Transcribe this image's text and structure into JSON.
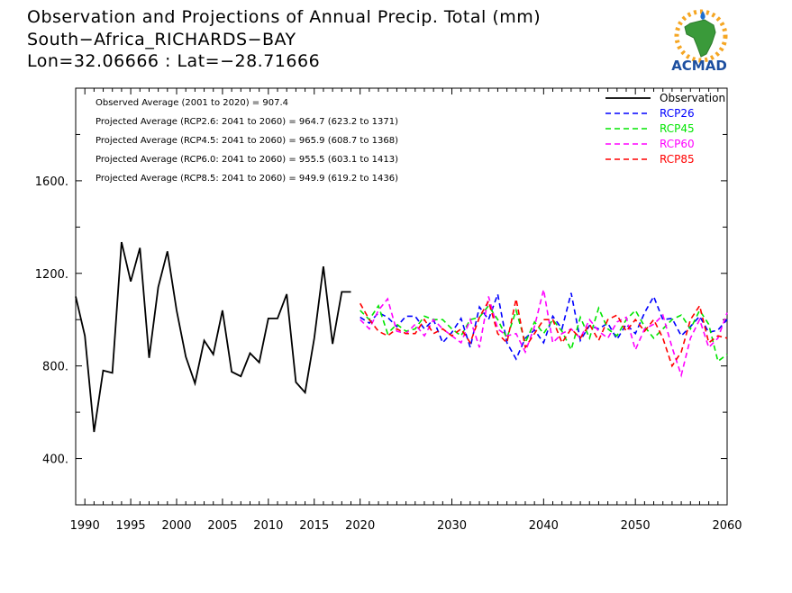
{
  "title": {
    "line1": "Observation and Projections of Annual Precip. Total (mm)",
    "line2": "South−Africa_RICHARDS−BAY",
    "line3": "Lon=32.06666 : Lat=−28.71666"
  },
  "logo": {
    "text": "ACMAD",
    "icon": "africa-sun-logo"
  },
  "colors": {
    "Observation": "#000000",
    "RCP26": "#0000ff",
    "RCP45": "#00e600",
    "RCP60": "#ff00ff",
    "RCP85": "#ff0000"
  },
  "chart_data": {
    "type": "line",
    "x_range": [
      1989,
      2060
    ],
    "ylim": [
      200,
      2000
    ],
    "yticks": [
      400,
      800,
      1200,
      1600
    ],
    "ytick_labels": [
      "400.",
      "800.",
      "1200.",
      "1600."
    ],
    "xtick_labels": [
      {
        "x": 1990,
        "label": "1990"
      },
      {
        "x": 1995,
        "label": "1995"
      },
      {
        "x": 2000,
        "label": "2000"
      },
      {
        "x": 2005,
        "label": "2005"
      },
      {
        "x": 2010,
        "label": "2010"
      },
      {
        "x": 2015,
        "label": "2015"
      },
      {
        "x": 2020,
        "label": "2020"
      },
      {
        "x": 2030,
        "label": "2030"
      },
      {
        "x": 2040,
        "label": "2040"
      },
      {
        "x": 2050,
        "label": "2050"
      },
      {
        "x": 2060,
        "label": "2060"
      }
    ],
    "legend": {
      "placement": "top-right",
      "entries": [
        "Observation",
        "RCP26",
        "RCP45",
        "RCP60",
        "RCP85"
      ]
    },
    "annotations": [
      "Observed Average (2001 to 2020) = 907.4",
      "Projected Average (RCP2.6: 2041 to 2060) = 964.7 (623.2 to 1371)",
      "Projected Average (RCP4.5: 2041 to 2060) = 965.9 (608.7 to 1368)",
      "Projected Average (RCP6.0: 2041 to 2060) = 955.5 (603.1 to 1413)",
      "Projected Average (RCP8.5: 2041 to 2060) = 949.9 (619.2 to 1436)"
    ],
    "series": [
      {
        "name": "Observation",
        "dash": false,
        "x": [
          1989,
          1990,
          1991,
          1992,
          1993,
          1994,
          1995,
          1996,
          1997,
          1998,
          1999,
          2000,
          2001,
          2002,
          2003,
          2004,
          2005,
          2006,
          2007,
          2008,
          2009,
          2010,
          2011,
          2012,
          2013,
          2014,
          2015,
          2016,
          2017,
          2018,
          2019
        ],
        "values": [
          1100,
          930,
          515,
          780,
          770,
          1335,
          1165,
          1310,
          835,
          1140,
          1295,
          1040,
          840,
          725,
          910,
          850,
          1040,
          775,
          755,
          855,
          815,
          1005,
          1005,
          1110,
          730,
          685,
          920,
          1230,
          895,
          1120,
          1120
        ]
      },
      {
        "name": "RCP26",
        "dash": true,
        "x": [
          2020,
          2021,
          2022,
          2023,
          2024,
          2025,
          2026,
          2027,
          2028,
          2029,
          2030,
          2031,
          2032,
          2033,
          2034,
          2035,
          2036,
          2037,
          2038,
          2039,
          2040,
          2041,
          2042,
          2043,
          2044,
          2045,
          2046,
          2047,
          2048,
          2049,
          2050,
          2051,
          2052,
          2053,
          2054,
          2055,
          2056,
          2057,
          2058,
          2059,
          2060
        ],
        "values": [
          1010,
          985,
          1030,
          1010,
          970,
          1015,
          1015,
          960,
          1000,
          900,
          945,
          1005,
          880,
          1055,
          1000,
          1110,
          900,
          830,
          920,
          955,
          900,
          1015,
          960,
          1115,
          910,
          975,
          960,
          985,
          915,
          980,
          940,
          1030,
          1100,
          1000,
          1005,
          930,
          970,
          1015,
          945,
          955,
          1000
        ]
      },
      {
        "name": "RCP45",
        "dash": true,
        "x": [
          2020,
          2021,
          2022,
          2023,
          2024,
          2025,
          2026,
          2027,
          2028,
          2029,
          2030,
          2031,
          2032,
          2033,
          2034,
          2035,
          2036,
          2037,
          2038,
          2039,
          2040,
          2041,
          2042,
          2043,
          2044,
          2045,
          2046,
          2047,
          2048,
          2049,
          2050,
          2051,
          2052,
          2053,
          2054,
          2055,
          2056,
          2057,
          2058,
          2059,
          2060
        ],
        "values": [
          1040,
          1000,
          1060,
          940,
          980,
          950,
          960,
          1015,
          1000,
          1000,
          960,
          930,
          1000,
          1010,
          1060,
          1000,
          920,
          1040,
          900,
          990,
          940,
          1000,
          950,
          870,
          1010,
          920,
          1050,
          960,
          930,
          1000,
          1040,
          970,
          920,
          960,
          1000,
          1020,
          960,
          1040,
          980,
          820,
          850
        ]
      },
      {
        "name": "RCP60",
        "dash": true,
        "x": [
          2020,
          2021,
          2022,
          2023,
          2024,
          2025,
          2026,
          2027,
          2028,
          2029,
          2030,
          2031,
          2032,
          2033,
          2034,
          2035,
          2036,
          2037,
          2038,
          2039,
          2040,
          2041,
          2042,
          2043,
          2044,
          2045,
          2046,
          2047,
          2048,
          2049,
          2050,
          2051,
          2052,
          2053,
          2054,
          2055,
          2056,
          2057,
          2058,
          2059,
          2060
        ],
        "values": [
          1000,
          960,
          1040,
          1090,
          950,
          940,
          980,
          930,
          1000,
          960,
          930,
          900,
          1000,
          880,
          1100,
          960,
          930,
          940,
          860,
          970,
          1130,
          900,
          940,
          960,
          920,
          1000,
          950,
          920,
          990,
          1010,
          870,
          960,
          980,
          1020,
          880,
          760,
          920,
          1000,
          880,
          920,
          1030
        ]
      },
      {
        "name": "RCP85",
        "dash": true,
        "x": [
          2020,
          2021,
          2022,
          2023,
          2024,
          2025,
          2026,
          2027,
          2028,
          2029,
          2030,
          2031,
          2032,
          2033,
          2034,
          2035,
          2036,
          2037,
          2038,
          2039,
          2040,
          2041,
          2042,
          2043,
          2044,
          2045,
          2046,
          2047,
          2048,
          2049,
          2050,
          2051,
          2052,
          2053,
          2054,
          2055,
          2056,
          2057,
          2058,
          2059,
          2060
        ],
        "values": [
          1070,
          1000,
          950,
          930,
          960,
          940,
          940,
          1000,
          940,
          960,
          930,
          960,
          900,
          1010,
          1080,
          940,
          900,
          1090,
          880,
          940,
          1000,
          1000,
          900,
          960,
          920,
          980,
          910,
          1000,
          1020,
          950,
          1000,
          950,
          1000,
          920,
          800,
          860,
          1000,
          1060,
          900,
          930,
          920
        ]
      }
    ]
  }
}
